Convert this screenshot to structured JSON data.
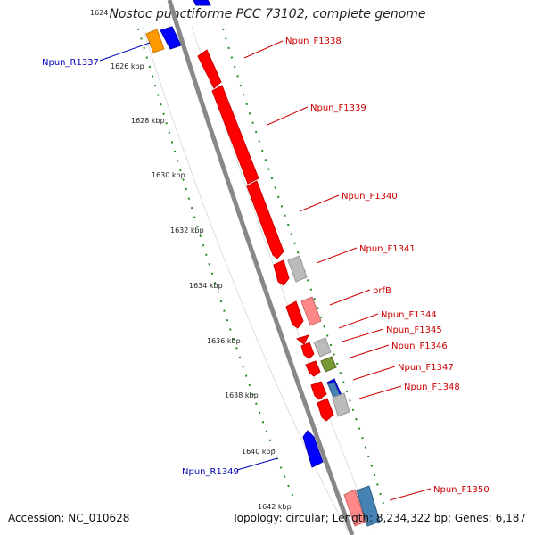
{
  "title": "Nostoc punctiforme PCC 73102, complete genome",
  "footer": {
    "accession": "Accession: NC_010628",
    "topology": "Topology: circular; Length: 8,234,322 bp; Genes: 6,187"
  },
  "colors": {
    "backbone": "#888888",
    "tick": "#228b22",
    "forward_label": "#cc0000",
    "reverse_label": "#0000bb",
    "gene_red": "#ff0000",
    "gene_blue": "#0000ff",
    "gene_grey": "#bbbbbb",
    "gene_pink": "#ff8888",
    "gene_olive": "#779933",
    "gene_steel": "#4682b4",
    "gene_orange": "#ff9900"
  },
  "kbp_labels": [
    "1624",
    "1626 kbp",
    "1628 kbp",
    "1630 kbp",
    "1632 kbp",
    "1634 kbp",
    "1636 kbp",
    "1638 kbp",
    "1640 kbp",
    "1642 kbp"
  ],
  "gene_labels": {
    "Npun_R1337": "Npun_R1337",
    "Npun_F1338": "Npun_F1338",
    "Npun_F1339": "Npun_F1339",
    "Npun_F1340": "Npun_F1340",
    "Npun_F1341": "Npun_F1341",
    "prfB": "prfB",
    "Npun_F1344": "Npun_F1344",
    "Npun_F1345": "Npun_F1345",
    "Npun_F1346": "Npun_F1346",
    "Npun_F1347": "Npun_F1347",
    "Npun_F1348": "Npun_F1348",
    "Npun_R1349": "Npun_R1349",
    "Npun_F1350": "Npun_F1350"
  }
}
